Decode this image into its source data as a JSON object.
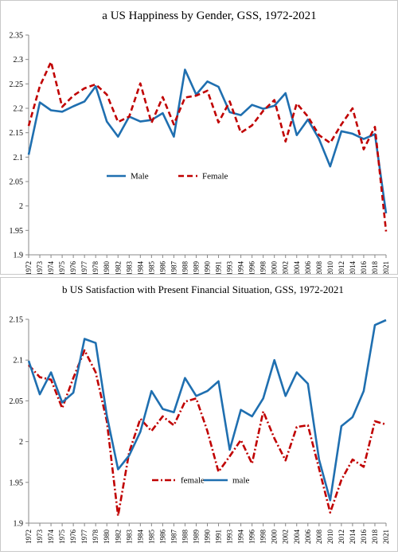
{
  "chart_data": [
    {
      "type": "line",
      "title": "a US Happiness by Gender, GSS, 1972-2021",
      "xlabel": "",
      "ylabel": "",
      "ylim": [
        1.9,
        2.35
      ],
      "yticks": [
        "2.35",
        "2.3",
        "2.25",
        "2.2",
        "2.15",
        "2.1",
        "2.05",
        "2",
        "1.95",
        "1.9"
      ],
      "x": [
        "1972",
        "1973",
        "1974",
        "1975",
        "1976",
        "1977",
        "1978",
        "1980",
        "1982",
        "1983",
        "1984",
        "1985",
        "1986",
        "1987",
        "1988",
        "1989",
        "1990",
        "1991",
        "1993",
        "1994",
        "1996",
        "1998",
        "2000",
        "2002",
        "2004",
        "2006",
        "2008",
        "2010",
        "2012",
        "2014",
        "2016",
        "2018",
        "2021"
      ],
      "series": [
        {
          "name": "Male",
          "color": "#1f6fb0",
          "dash": "solid",
          "values": [
            2.105,
            2.212,
            2.196,
            2.193,
            2.204,
            2.214,
            2.245,
            2.173,
            2.142,
            2.183,
            2.173,
            2.176,
            2.19,
            2.142,
            2.279,
            2.228,
            2.255,
            2.244,
            2.192,
            2.186,
            2.207,
            2.199,
            2.205,
            2.231,
            2.145,
            2.177,
            2.137,
            2.081,
            2.153,
            2.148,
            2.137,
            2.147,
            1.985
          ]
        },
        {
          "name": "Female",
          "color": "#c00000",
          "dash": "dash",
          "values": [
            2.164,
            2.245,
            2.295,
            2.203,
            2.226,
            2.241,
            2.249,
            2.228,
            2.172,
            2.183,
            2.251,
            2.17,
            2.223,
            2.167,
            2.222,
            2.226,
            2.236,
            2.171,
            2.214,
            2.15,
            2.165,
            2.195,
            2.217,
            2.132,
            2.21,
            2.183,
            2.145,
            2.129,
            2.167,
            2.2,
            2.116,
            2.162,
            1.948
          ]
        }
      ],
      "legend": "center-left"
    },
    {
      "type": "line",
      "title": "b US Satisfaction with Present Financial Situation, GSS, 1972-2021",
      "xlabel": "",
      "ylabel": "",
      "ylim": [
        1.9,
        2.15
      ],
      "yticks": [
        "2.15",
        "2.1",
        "2.05",
        "2",
        "1.95",
        "1.9"
      ],
      "x": [
        "1972",
        "1973",
        "1974",
        "1975",
        "1976",
        "1977",
        "1978",
        "1980",
        "1982",
        "1983",
        "1984",
        "1985",
        "1986",
        "1987",
        "1988",
        "1989",
        "1990",
        "1991",
        "1993",
        "1994",
        "1996",
        "1998",
        "2000",
        "2002",
        "2004",
        "2006",
        "2008",
        "2010",
        "2012",
        "2014",
        "2016",
        "2018",
        "2021"
      ],
      "series": [
        {
          "name": "female",
          "color": "#c00000",
          "dash": "dashdot",
          "values": [
            2.094,
            2.079,
            2.076,
            2.041,
            2.078,
            2.112,
            2.085,
            2.025,
            1.909,
            1.987,
            2.028,
            2.013,
            2.031,
            2.02,
            2.049,
            2.053,
            2.013,
            1.963,
            1.982,
            2.002,
            1.973,
            2.037,
            2.004,
            1.977,
            2.018,
            2.02,
            1.967,
            1.913,
            1.953,
            1.978,
            1.969,
            2.025,
            2.021
          ]
        },
        {
          "name": "male",
          "color": "#1f6fb0",
          "dash": "solid",
          "values": [
            2.099,
            2.058,
            2.085,
            2.048,
            2.06,
            2.126,
            2.121,
            2.032,
            1.966,
            1.983,
            2.012,
            2.062,
            2.04,
            2.036,
            2.078,
            2.056,
            2.062,
            2.074,
            1.99,
            2.039,
            2.031,
            2.053,
            2.1,
            2.056,
            2.085,
            2.071,
            1.978,
            1.928,
            2.019,
            2.03,
            2.062,
            2.143,
            2.149
          ]
        }
      ],
      "legend": "bottom-center"
    }
  ]
}
